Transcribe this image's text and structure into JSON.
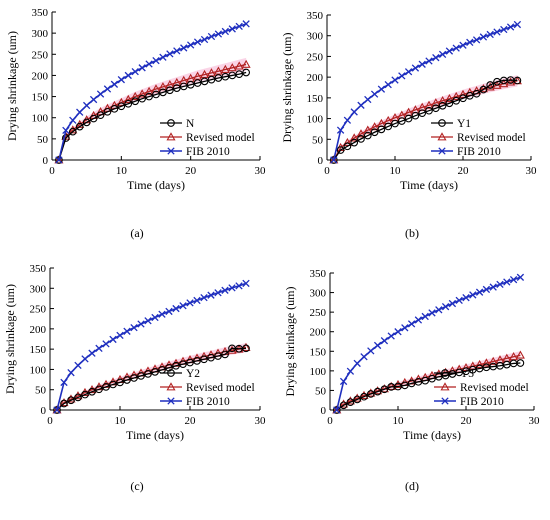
{
  "colors": {
    "measured": "#000000",
    "revised": "#b22222",
    "revised_band": "#f4a0c8",
    "fib": "#1f2fbf",
    "axis": "#000000"
  },
  "chart_data": [
    {
      "type": "line",
      "panel_label": "(a)",
      "xlabel": "Time (days)",
      "ylabel": "Drying shrinkage (um)",
      "xlim": [
        0,
        30
      ],
      "ylim": [
        0,
        350
      ],
      "xticks": [
        "0",
        "10",
        "20",
        "30"
      ],
      "yticks": [
        "0",
        "50",
        "100",
        "150",
        "200",
        "250",
        "300",
        "350"
      ],
      "legend_position": "bottom-right",
      "series": [
        {
          "name": "N",
          "marker": "circle",
          "color_key": "measured",
          "x": [
            1,
            2,
            3,
            4,
            5,
            6,
            7,
            8,
            9,
            10,
            11,
            12,
            13,
            14,
            15,
            16,
            17,
            18,
            19,
            20,
            21,
            22,
            23,
            24,
            25,
            26,
            27,
            28
          ],
          "y": [
            0,
            52,
            67,
            79,
            89,
            98,
            106,
            114,
            121,
            127,
            133,
            139,
            145,
            150,
            155,
            160,
            165,
            170,
            174,
            178,
            182,
            186,
            190,
            194,
            197,
            200,
            203,
            207
          ]
        },
        {
          "name": "Revised model",
          "marker": "triangle",
          "color_key": "revised",
          "x": [
            1,
            2,
            3,
            4,
            5,
            6,
            7,
            8,
            9,
            10,
            11,
            12,
            13,
            14,
            15,
            16,
            17,
            18,
            19,
            20,
            21,
            22,
            23,
            24,
            25,
            26,
            27,
            28
          ],
          "y": [
            0,
            56,
            71,
            84,
            95,
            105,
            114,
            122,
            129,
            136,
            143,
            150,
            156,
            162,
            168,
            173,
            178,
            183,
            188,
            193,
            198,
            202,
            206,
            210,
            214,
            218,
            222,
            226
          ]
        },
        {
          "name": "FIB 2010",
          "marker": "x",
          "color_key": "fib",
          "x": [
            1,
            2,
            3,
            4,
            5,
            6,
            7,
            8,
            9,
            10,
            11,
            12,
            13,
            14,
            15,
            16,
            17,
            18,
            19,
            20,
            21,
            22,
            23,
            24,
            25,
            26,
            27,
            28
          ],
          "y": [
            0,
            70,
            94,
            113,
            129,
            143,
            156,
            168,
            179,
            190,
            200,
            209,
            218,
            227,
            235,
            243,
            251,
            258,
            265,
            272,
            279,
            285,
            292,
            298,
            304,
            310,
            316,
            322
          ]
        }
      ]
    },
    {
      "type": "line",
      "panel_label": "(b)",
      "xlabel": "Time (days)",
      "ylabel": "Drying shrinkage (um)",
      "xlim": [
        0,
        30
      ],
      "ylim": [
        0,
        350
      ],
      "xticks": [
        "0",
        "10",
        "20",
        "30"
      ],
      "yticks": [
        "0",
        "50",
        "100",
        "150",
        "200",
        "250",
        "300",
        "350"
      ],
      "legend_position": "bottom-right",
      "series": [
        {
          "name": "Y1",
          "marker": "circle",
          "color_key": "measured",
          "x": [
            1,
            2,
            3,
            4,
            5,
            6,
            7,
            8,
            9,
            10,
            11,
            12,
            13,
            14,
            15,
            16,
            17,
            18,
            19,
            20,
            21,
            22,
            23,
            24,
            25,
            26,
            27,
            28
          ],
          "y": [
            0,
            24,
            33,
            42,
            51,
            59,
            67,
            74,
            81,
            88,
            94,
            100,
            107,
            113,
            119,
            125,
            131,
            137,
            143,
            149,
            155,
            160,
            170,
            181,
            189,
            192,
            193,
            192
          ]
        },
        {
          "name": "Revised model",
          "marker": "triangle",
          "color_key": "revised",
          "x": [
            1,
            2,
            3,
            4,
            5,
            6,
            7,
            8,
            9,
            10,
            11,
            12,
            13,
            14,
            15,
            16,
            17,
            18,
            19,
            20,
            21,
            22,
            23,
            24,
            25,
            26,
            27,
            28
          ],
          "y": [
            0,
            30,
            42,
            53,
            63,
            72,
            80,
            88,
            95,
            102,
            108,
            115,
            121,
            127,
            132,
            138,
            143,
            148,
            153,
            158,
            163,
            167,
            172,
            176,
            180,
            184,
            188,
            191
          ]
        },
        {
          "name": "FIB 2010",
          "marker": "x",
          "color_key": "fib",
          "x": [
            1,
            2,
            3,
            4,
            5,
            6,
            7,
            8,
            9,
            10,
            11,
            12,
            13,
            14,
            15,
            16,
            17,
            18,
            19,
            20,
            21,
            22,
            23,
            24,
            25,
            26,
            27,
            28
          ],
          "y": [
            0,
            72,
            96,
            116,
            132,
            146,
            159,
            171,
            182,
            193,
            203,
            213,
            222,
            231,
            239,
            247,
            255,
            263,
            270,
            277,
            284,
            290,
            297,
            303,
            309,
            315,
            321,
            327
          ]
        }
      ]
    },
    {
      "type": "line",
      "panel_label": "(c)",
      "xlabel": "Time (days)",
      "ylabel": "Drying shrinkage (um)",
      "xlim": [
        0,
        30
      ],
      "ylim": [
        0,
        350
      ],
      "xticks": [
        "0",
        "10",
        "20",
        "30"
      ],
      "yticks": [
        "0",
        "50",
        "100",
        "150",
        "200",
        "250",
        "300",
        "350"
      ],
      "legend_position": "bottom-right",
      "series": [
        {
          "name": "Y2",
          "marker": "circle",
          "color_key": "measured",
          "x": [
            1,
            2,
            3,
            4,
            5,
            6,
            7,
            8,
            9,
            10,
            11,
            12,
            13,
            14,
            15,
            16,
            17,
            18,
            19,
            20,
            21,
            22,
            23,
            24,
            25,
            26,
            27,
            28
          ],
          "y": [
            0,
            16,
            24,
            31,
            38,
            45,
            51,
            57,
            63,
            68,
            74,
            79,
            84,
            89,
            94,
            99,
            104,
            109,
            113,
            117,
            121,
            125,
            129,
            133,
            137,
            152,
            151,
            152
          ]
        },
        {
          "name": "Revised model",
          "marker": "triangle",
          "color_key": "revised",
          "x": [
            1,
            2,
            3,
            4,
            5,
            6,
            7,
            8,
            9,
            10,
            11,
            12,
            13,
            14,
            15,
            16,
            17,
            18,
            19,
            20,
            21,
            22,
            23,
            24,
            25,
            26,
            27,
            28
          ],
          "y": [
            0,
            18,
            27,
            35,
            43,
            50,
            57,
            63,
            69,
            75,
            81,
            86,
            91,
            96,
            101,
            106,
            111,
            115,
            120,
            124,
            128,
            132,
            136,
            140,
            144,
            147,
            150,
            154
          ]
        },
        {
          "name": "FIB 2010",
          "marker": "x",
          "color_key": "fib",
          "x": [
            1,
            2,
            3,
            4,
            5,
            6,
            7,
            8,
            9,
            10,
            11,
            12,
            13,
            14,
            15,
            16,
            17,
            18,
            19,
            20,
            21,
            22,
            23,
            24,
            25,
            26,
            27,
            28
          ],
          "y": [
            0,
            68,
            92,
            110,
            126,
            140,
            152,
            163,
            174,
            184,
            194,
            203,
            212,
            220,
            228,
            236,
            243,
            250,
            257,
            264,
            270,
            277,
            283,
            289,
            295,
            301,
            306,
            312
          ]
        }
      ]
    },
    {
      "type": "line",
      "panel_label": "(d)",
      "xlabel": "Time (days)",
      "ylabel": "Drying shrinkage (um)",
      "xlim": [
        0,
        30
      ],
      "ylim": [
        0,
        350
      ],
      "xticks": [
        "0",
        "10",
        "20",
        "30"
      ],
      "yticks": [
        "0",
        "50",
        "100",
        "150",
        "200",
        "250",
        "300",
        "350"
      ],
      "legend_position": "bottom-right",
      "series": [
        {
          "name": "Y3",
          "marker": "circle",
          "color_key": "measured",
          "x": [
            1,
            2,
            3,
            4,
            5,
            6,
            7,
            8,
            9,
            10,
            11,
            12,
            13,
            14,
            15,
            16,
            17,
            18,
            19,
            20,
            21,
            22,
            23,
            24,
            25,
            26,
            27,
            28
          ],
          "y": [
            0,
            12,
            20,
            27,
            34,
            41,
            47,
            53,
            59,
            60,
            63,
            68,
            72,
            75,
            80,
            85,
            88,
            92,
            96,
            99,
            103,
            106,
            109,
            111,
            113,
            116,
            119,
            120
          ]
        },
        {
          "name": "Revised model",
          "marker": "triangle",
          "color_key": "revised",
          "x": [
            1,
            2,
            3,
            4,
            5,
            6,
            7,
            8,
            9,
            10,
            11,
            12,
            13,
            14,
            15,
            16,
            17,
            18,
            19,
            20,
            21,
            22,
            23,
            24,
            25,
            26,
            27,
            28
          ],
          "y": [
            0,
            15,
            23,
            30,
            37,
            43,
            49,
            54,
            60,
            65,
            70,
            74,
            79,
            83,
            88,
            92,
            96,
            100,
            104,
            108,
            112,
            116,
            120,
            124,
            128,
            132,
            136,
            140
          ]
        },
        {
          "name": "FIB 2010",
          "marker": "x",
          "color_key": "fib",
          "x": [
            1,
            2,
            3,
            4,
            5,
            6,
            7,
            8,
            9,
            10,
            11,
            12,
            13,
            14,
            15,
            16,
            17,
            18,
            19,
            20,
            21,
            22,
            23,
            24,
            25,
            26,
            27,
            28
          ],
          "y": [
            0,
            73,
            99,
            119,
            136,
            151,
            165,
            177,
            189,
            200,
            210,
            220,
            230,
            239,
            248,
            256,
            264,
            272,
            280,
            287,
            294,
            301,
            308,
            314,
            321,
            327,
            333,
            339
          ]
        }
      ]
    }
  ]
}
